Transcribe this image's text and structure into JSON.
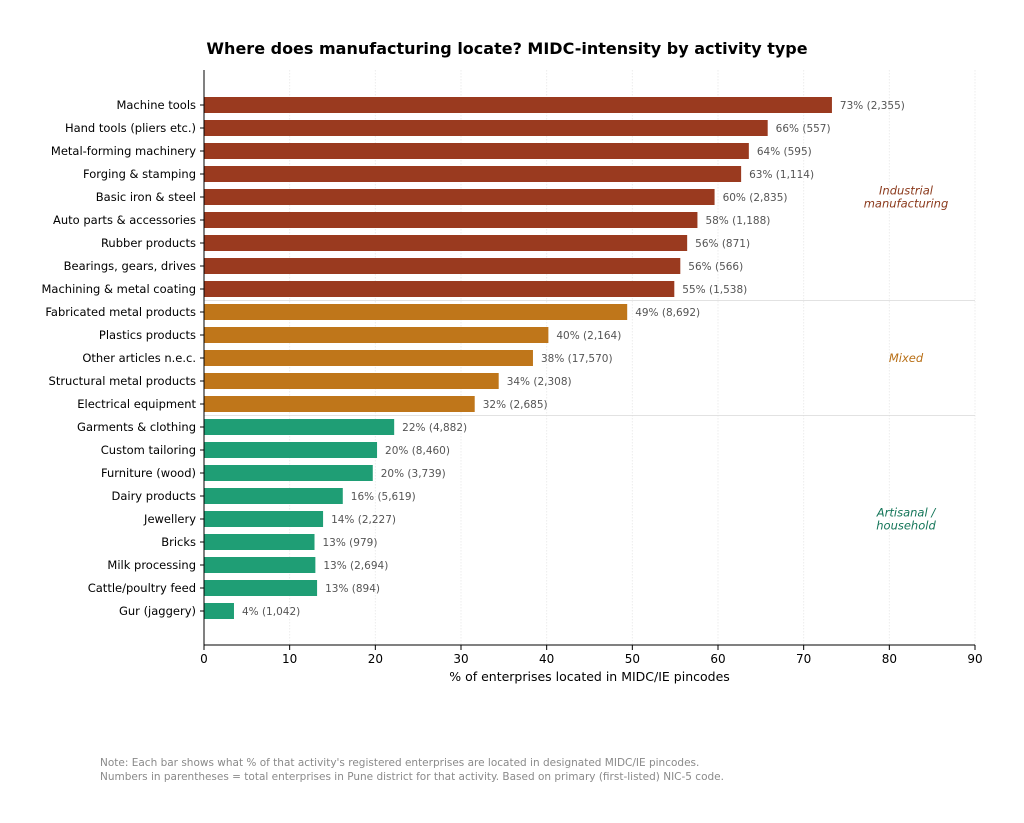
{
  "chart_data": {
    "type": "bar",
    "orientation": "horizontal",
    "title": "Where does manufacturing locate? MIDC-intensity by activity type",
    "xlabel": "% of enterprises located in MIDC/IE pincodes",
    "xlim": [
      0,
      90
    ],
    "xticks": [
      "0",
      "10",
      "20",
      "30",
      "40",
      "50",
      "60",
      "70",
      "80",
      "90"
    ],
    "grid": "vertical",
    "categories": [
      "Machine tools",
      "Hand tools (pliers etc.)",
      "Metal-forming machinery",
      "Forging & stamping",
      "Basic iron & steel",
      "Auto parts & accessories",
      "Rubber products",
      "Bearings, gears, drives",
      "Machining & metal coating",
      "Fabricated metal products",
      "Plastics products",
      "Other articles n.e.c.",
      "Structural metal products",
      "Electrical equipment",
      "Garments & clothing",
      "Custom tailoring",
      "Furniture (wood)",
      "Dairy products",
      "Jewellery",
      "Bricks",
      "Milk processing",
      "Cattle/poultry feed",
      "Gur (jaggery)"
    ],
    "values": [
      73.3,
      65.8,
      63.6,
      62.7,
      59.6,
      57.6,
      56.4,
      55.6,
      54.9,
      49.4,
      40.2,
      38.4,
      34.4,
      31.6,
      22.2,
      20.2,
      19.7,
      16.2,
      13.9,
      12.9,
      13.0,
      13.2,
      3.5
    ],
    "value_labels": [
      "73%  (2,355)",
      "66%  (557)",
      "64%  (595)",
      "63%  (1,114)",
      "60%  (2,835)",
      "58%  (1,188)",
      "56%  (871)",
      "56%  (566)",
      "55%  (1,538)",
      "49%  (8,692)",
      "40%  (2,164)",
      "38%  (17,570)",
      "34%  (2,308)",
      "32%  (2,685)",
      "22%  (4,882)",
      "20%  (8,460)",
      "20%  (3,739)",
      "16%  (5,619)",
      "14%  (2,227)",
      "13%  (979)",
      "13%  (2,694)",
      "13%  (894)",
      "4%  (1,042)"
    ],
    "groups": [
      {
        "label_lines": [
          "Industrial",
          "manufacturing"
        ],
        "start": 0,
        "end": 8,
        "color": "#9a3a1f",
        "label_color": "#8b3a1c"
      },
      {
        "label_lines": [
          "Mixed"
        ],
        "start": 9,
        "end": 13,
        "color": "#bf761a",
        "label_color": "#b86f16"
      },
      {
        "label_lines": [
          "Artisanal /",
          "household"
        ],
        "start": 14,
        "end": 22,
        "color": "#1f9e75",
        "label_color": "#137558"
      }
    ]
  },
  "note": {
    "line1": "Note: Each bar shows what % of that activity's registered enterprises are located in designated MIDC/IE pincodes.",
    "line2": "Numbers in parentheses = total enterprises in Pune district for that activity. Based on primary (first-listed) NIC-5 code."
  }
}
